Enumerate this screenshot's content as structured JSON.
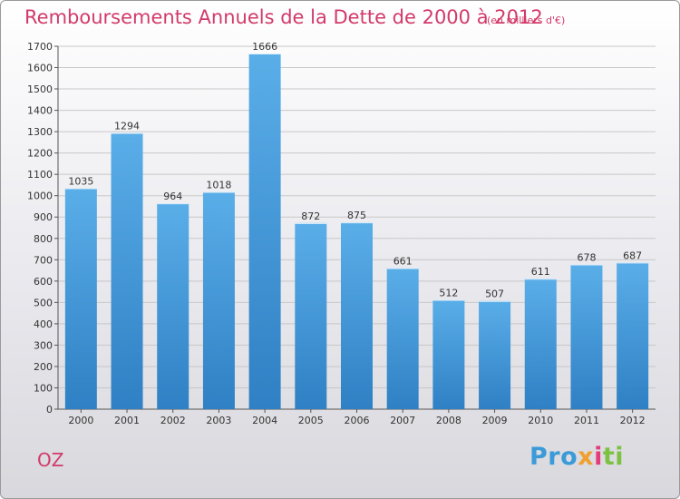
{
  "title": "Remboursements Annuels de la Dette de 2000 à 2012",
  "subtitle": "(en milliers d'€)",
  "commune": "OZ",
  "brand": {
    "p1": "Pro",
    "p2": "x",
    "p3": "i",
    "p4": "ti"
  },
  "colors": {
    "bar_top": "#5aaee8",
    "bar_bottom": "#2f80c4",
    "title": "#d23a6b",
    "grid": "#c8c8c8"
  },
  "chart_data": {
    "type": "bar",
    "categories": [
      "2000",
      "2001",
      "2002",
      "2003",
      "2004",
      "2005",
      "2006",
      "2007",
      "2008",
      "2009",
      "2010",
      "2011",
      "2012"
    ],
    "values": [
      1035,
      1294,
      964,
      1018,
      1666,
      872,
      875,
      661,
      512,
      507,
      611,
      678,
      687
    ],
    "ylim": [
      0,
      1700
    ],
    "yticks": [
      0,
      100,
      200,
      300,
      400,
      500,
      600,
      700,
      800,
      900,
      1000,
      1100,
      1200,
      1300,
      1400,
      1500,
      1600,
      1700
    ],
    "grid": true,
    "data_labels": true
  }
}
